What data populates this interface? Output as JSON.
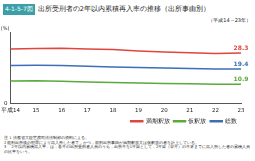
{
  "chart_data": {
    "type": "line",
    "figure_number": "4-1-5-7図",
    "title": "出所受刑者の2年以内累積再入率の推移（出所事由別）",
    "subtitle": "（平成14～23年）",
    "y_label": "(%)",
    "categories": [
      "平成14",
      "15",
      "16",
      "17",
      "18",
      "19",
      "20",
      "21",
      "22",
      "23"
    ],
    "series": [
      {
        "name": "満期釈放",
        "color": "#e0463e",
        "values": [
          30.5,
          30.8,
          31.0,
          30.6,
          30.2,
          29.4,
          28.9,
          28.5,
          28.0,
          28.3
        ],
        "value_labels": [
          null,
          null,
          null,
          null,
          null,
          null,
          null,
          null,
          null,
          "28.3"
        ]
      },
      {
        "name": "仮釈放",
        "color": "#5aaa3a",
        "values": [
          12.8,
          12.9,
          12.6,
          12.2,
          11.9,
          11.6,
          11.4,
          11.2,
          10.9,
          10.9
        ],
        "value_labels": [
          null,
          null,
          null,
          null,
          null,
          null,
          null,
          null,
          null,
          "10.9"
        ]
      },
      {
        "name": "総数",
        "color": "#3d6fb6",
        "values": [
          21.4,
          21.5,
          21.4,
          20.9,
          20.5,
          20.2,
          20.0,
          19.7,
          19.4,
          19.4
        ],
        "value_labels": [
          null,
          null,
          null,
          null,
          null,
          null,
          null,
          null,
          null,
          "19.4"
        ]
      }
    ],
    "ylim": [
      0,
      40
    ],
    "yticks": [
      0
    ],
    "grid": false,
    "legend": "bottom-right",
    "data_labels": true,
    "notes": [
      "注 1 法務省大臣官房司法法制部の資料による。",
      "2 前刑出所後の犯罪により再入所した者で，かつ，前刑出所事由が満期釈放又は仮釈放の者を計上している。",
      "3 「2年以内累積再入率」は，各年の出所受刑者人員のうち，出所年を1年目として，2年目（翌年）の年末までに再入所した者の累積人員の比率をいう。"
    ]
  }
}
